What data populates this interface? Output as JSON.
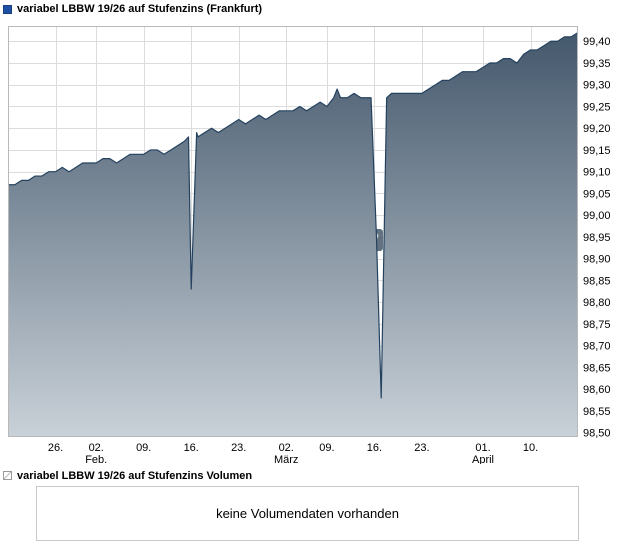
{
  "header": {
    "title": "variabel LBBW 19/26 auf Stufenzins (Frankfurt)"
  },
  "volume_section": {
    "title": "variabel LBBW 19/26 auf Stufenzins Volumen",
    "message": "keine Volumendaten vorhanden"
  },
  "chart_data": {
    "type": "area",
    "title": "variabel LBBW 19/26 auf Stufenzins (Frankfurt)",
    "x_domain": [
      0,
      84
    ],
    "y_domain": [
      98.49,
      99.435
    ],
    "grid": true,
    "legend_position": "none",
    "line_color": "#24425f",
    "fill_top": "#44586c",
    "fill_bottom": "#c9d1d8",
    "grid_color": "#dcdcdc",
    "border_color": "#b9b9b9",
    "y_ticks": [
      {
        "value": 99.4,
        "label": "99,40"
      },
      {
        "value": 99.35,
        "label": "99,35"
      },
      {
        "value": 99.3,
        "label": "99,30"
      },
      {
        "value": 99.25,
        "label": "99,25"
      },
      {
        "value": 99.2,
        "label": "99,20"
      },
      {
        "value": 99.15,
        "label": "99,15"
      },
      {
        "value": 99.1,
        "label": "99,10"
      },
      {
        "value": 99.05,
        "label": "99,05"
      },
      {
        "value": 99.0,
        "label": "99,00"
      },
      {
        "value": 98.95,
        "label": "98,95"
      },
      {
        "value": 98.9,
        "label": "98,90"
      },
      {
        "value": 98.85,
        "label": "98,85"
      },
      {
        "value": 98.8,
        "label": "98,80"
      },
      {
        "value": 98.75,
        "label": "98,75"
      },
      {
        "value": 98.7,
        "label": "98,70"
      },
      {
        "value": 98.65,
        "label": "98,65"
      },
      {
        "value": 98.6,
        "label": "98,60"
      },
      {
        "value": 98.55,
        "label": "98,55"
      },
      {
        "value": 98.5,
        "label": "98,50"
      }
    ],
    "x_ticks": [
      {
        "day": 7,
        "label": "26."
      },
      {
        "day": 13,
        "label": "02."
      },
      {
        "day": 20,
        "label": "09."
      },
      {
        "day": 27,
        "label": "16."
      },
      {
        "day": 34,
        "label": "23."
      },
      {
        "day": 41,
        "label": "02."
      },
      {
        "day": 47,
        "label": "09."
      },
      {
        "day": 54,
        "label": "16."
      },
      {
        "day": 61,
        "label": "23."
      },
      {
        "day": 70,
        "label": "01."
      },
      {
        "day": 77,
        "label": "10."
      }
    ],
    "month_labels": [
      {
        "day": 13,
        "label": "Feb."
      },
      {
        "day": 41,
        "label": "März"
      },
      {
        "day": 70,
        "label": "April"
      }
    ],
    "series": [
      {
        "name": "variabel LBBW 19/26 auf Stufenzins",
        "points": [
          [
            0,
            99.07
          ],
          [
            1,
            99.07
          ],
          [
            2,
            99.08
          ],
          [
            3,
            99.08
          ],
          [
            4,
            99.09
          ],
          [
            5,
            99.09
          ],
          [
            6,
            99.1
          ],
          [
            7,
            99.1
          ],
          [
            8,
            99.11
          ],
          [
            9,
            99.1
          ],
          [
            10,
            99.11
          ],
          [
            11,
            99.12
          ],
          [
            12,
            99.12
          ],
          [
            13,
            99.12
          ],
          [
            14,
            99.13
          ],
          [
            15,
            99.13
          ],
          [
            16,
            99.12
          ],
          [
            17,
            99.13
          ],
          [
            18,
            99.14
          ],
          [
            19,
            99.14
          ],
          [
            20,
            99.14
          ],
          [
            21,
            99.15
          ],
          [
            22,
            99.15
          ],
          [
            23,
            99.14
          ],
          [
            24,
            99.15
          ],
          [
            25,
            99.16
          ],
          [
            26,
            99.17
          ],
          [
            26.6,
            99.18
          ],
          [
            27,
            98.83
          ],
          [
            27.8,
            99.19
          ],
          [
            28,
            99.18
          ],
          [
            29,
            99.19
          ],
          [
            30,
            99.2
          ],
          [
            31,
            99.19
          ],
          [
            32,
            99.2
          ],
          [
            33,
            99.21
          ],
          [
            34,
            99.22
          ],
          [
            35,
            99.21
          ],
          [
            36,
            99.22
          ],
          [
            37,
            99.23
          ],
          [
            38,
            99.22
          ],
          [
            39,
            99.23
          ],
          [
            40,
            99.24
          ],
          [
            41,
            99.24
          ],
          [
            42,
            99.24
          ],
          [
            43,
            99.25
          ],
          [
            44,
            99.24
          ],
          [
            45,
            99.25
          ],
          [
            46,
            99.26
          ],
          [
            47,
            99.25
          ],
          [
            48,
            99.27
          ],
          [
            48.5,
            99.29
          ],
          [
            49,
            99.27
          ],
          [
            50,
            99.27
          ],
          [
            51,
            99.28
          ],
          [
            52,
            99.27
          ],
          [
            53,
            99.27
          ],
          [
            53.5,
            99.27
          ],
          [
            54.3,
            98.95
          ],
          [
            55,
            98.58
          ],
          [
            55.8,
            99.27
          ],
          [
            56.5,
            99.28
          ],
          [
            57,
            99.28
          ],
          [
            58,
            99.28
          ],
          [
            59,
            99.28
          ],
          [
            60,
            99.28
          ],
          [
            61,
            99.28
          ],
          [
            62,
            99.29
          ],
          [
            63,
            99.3
          ],
          [
            64,
            99.31
          ],
          [
            65,
            99.31
          ],
          [
            66,
            99.32
          ],
          [
            67,
            99.33
          ],
          [
            68,
            99.33
          ],
          [
            69,
            99.33
          ],
          [
            70,
            99.34
          ],
          [
            71,
            99.35
          ],
          [
            72,
            99.35
          ],
          [
            73,
            99.36
          ],
          [
            74,
            99.36
          ],
          [
            75,
            99.35
          ],
          [
            76,
            99.37
          ],
          [
            77,
            99.38
          ],
          [
            78,
            99.38
          ],
          [
            79,
            99.39
          ],
          [
            80,
            99.4
          ],
          [
            81,
            99.4
          ],
          [
            82,
            99.41
          ],
          [
            83,
            99.41
          ],
          [
            84,
            99.42
          ]
        ]
      }
    ]
  }
}
